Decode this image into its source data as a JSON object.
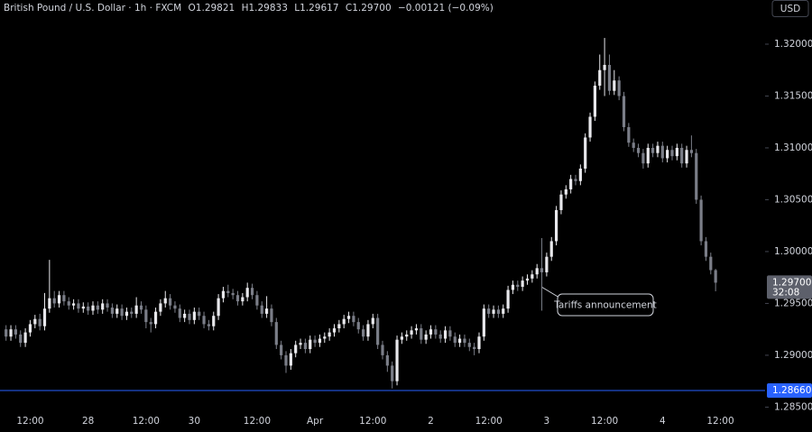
{
  "header": {
    "symbol": "British Pound / U.S. Dollar · 1h · FXCM",
    "ohlc": [
      {
        "key": "O",
        "value": "1.29821"
      },
      {
        "key": "H",
        "value": "1.29833"
      },
      {
        "key": "L",
        "value": "1.29617"
      },
      {
        "key": "C",
        "value": "1.29700"
      }
    ],
    "change": "−0.00121 (−0.09%)",
    "currency": "USD"
  },
  "chart_data": {
    "type": "candlestick",
    "categories": [
      null,
      null,
      null,
      null,
      null,
      "12:00",
      null,
      null,
      null,
      null,
      null,
      null,
      null,
      null,
      null,
      null,
      null,
      "28",
      null,
      null,
      null,
      null,
      null,
      null,
      null,
      null,
      null,
      null,
      null,
      "12:00",
      null,
      null,
      null,
      null,
      null,
      null,
      null,
      null,
      null,
      "30",
      null,
      null,
      null,
      null,
      null,
      null,
      null,
      null,
      null,
      null,
      null,
      null,
      "12:00",
      null,
      null,
      null,
      null,
      null,
      null,
      null,
      null,
      null,
      null,
      null,
      "Apr",
      null,
      null,
      null,
      null,
      null,
      null,
      null,
      null,
      null,
      null,
      null,
      "12:00",
      null,
      null,
      null,
      null,
      null,
      null,
      null,
      null,
      null,
      null,
      null,
      "2",
      null,
      null,
      null,
      null,
      null,
      null,
      null,
      null,
      null,
      null,
      null,
      "12:00",
      null,
      null,
      null,
      null,
      null,
      null,
      null,
      null,
      null,
      null,
      null,
      "3",
      null,
      null,
      null,
      null,
      null,
      null,
      null,
      null,
      null,
      null,
      null,
      "12:00",
      null,
      null,
      null,
      null,
      null,
      null,
      null,
      null,
      null,
      null,
      null,
      "4",
      null,
      null,
      null,
      null,
      null,
      null,
      null,
      null,
      null,
      null,
      null,
      "12:00"
    ],
    "open": [
      1.2925,
      1.2918,
      1.2925,
      1.292,
      1.2912,
      1.2922,
      1.293,
      1.2935,
      1.2928,
      1.2945,
      1.2955,
      1.295,
      1.2958,
      1.2952,
      1.2948,
      1.295,
      1.2945,
      1.2947,
      1.2943,
      1.2948,
      1.2944,
      1.295,
      1.2946,
      1.294,
      1.2945,
      1.2938,
      1.2942,
      1.294,
      1.2948,
      1.2944,
      1.2932,
      1.293,
      1.2942,
      1.295,
      1.2955,
      1.2948,
      1.2945,
      1.2936,
      1.294,
      1.2934,
      1.2942,
      1.2938,
      1.293,
      1.2928,
      1.2938,
      1.2955,
      1.2962,
      1.296,
      1.2958,
      1.2952,
      1.2956,
      1.2965,
      1.2958,
      1.2948,
      1.294,
      1.2945,
      1.2932,
      1.291,
      1.29,
      1.289,
      1.2902,
      1.291,
      1.2912,
      1.2906,
      1.2915,
      1.2912,
      1.2916,
      1.2918,
      1.2922,
      1.2926,
      1.293,
      1.2935,
      1.2938,
      1.2932,
      1.2925,
      1.2918,
      1.293,
      1.2936,
      1.291,
      1.29,
      1.289,
      1.2875,
      1.2915,
      1.2918,
      1.292,
      1.2924,
      1.2926,
      1.2915,
      1.292,
      1.2925,
      1.292,
      1.2916,
      1.2924,
      1.2918,
      1.2912,
      1.2916,
      1.2912,
      1.2908,
      1.2906,
      1.2918,
      1.2945,
      1.294,
      1.2944,
      1.294,
      1.2945,
      1.2963,
      1.2968,
      1.2966,
      1.2972,
      1.2974,
      1.2978,
      1.2984,
      1.298,
      1.2995,
      1.301,
      1.304,
      1.3055,
      1.306,
      1.307,
      1.3068,
      1.308,
      1.311,
      1.313,
      1.316,
      1.3175,
      1.318,
      1.3155,
      1.3165,
      1.315,
      1.312,
      1.3105,
      1.31,
      1.3095,
      1.3085,
      1.31,
      1.3095,
      1.3102,
      1.309,
      1.3098,
      1.3092,
      1.31,
      1.3085,
      1.3098,
      1.3095,
      1.305,
      1.301,
      1.2995,
      1.29821,
      null
    ],
    "high": [
      1.2929,
      1.2929,
      1.2929,
      1.2924,
      1.2926,
      1.2934,
      1.2939,
      1.294,
      1.296,
      1.2992,
      1.2962,
      1.2962,
      1.2962,
      1.2956,
      1.2954,
      1.2954,
      1.2951,
      1.2951,
      1.2952,
      1.2952,
      1.2954,
      1.2954,
      1.295,
      1.2949,
      1.2949,
      1.2946,
      1.2946,
      1.2956,
      1.2952,
      1.2948,
      1.2936,
      1.2946,
      1.2954,
      1.2962,
      1.2959,
      1.2952,
      1.2949,
      1.2944,
      1.2944,
      1.2946,
      1.2946,
      1.2942,
      1.2934,
      1.2942,
      1.2959,
      1.2966,
      1.2968,
      1.2964,
      1.2962,
      1.296,
      1.297,
      1.2969,
      1.2962,
      1.2952,
      1.2957,
      1.2949,
      1.2936,
      1.2914,
      1.2904,
      1.2906,
      1.2914,
      1.2916,
      1.2916,
      1.2919,
      1.2919,
      1.292,
      1.2922,
      1.2926,
      1.293,
      1.2934,
      1.2939,
      1.2942,
      1.2942,
      1.2936,
      1.2929,
      1.2934,
      1.294,
      1.294,
      1.2914,
      1.2904,
      1.2894,
      1.2919,
      1.2922,
      1.2924,
      1.2928,
      1.293,
      1.293,
      1.2924,
      1.2929,
      1.2929,
      1.2924,
      1.2928,
      1.2928,
      1.2922,
      1.292,
      1.292,
      1.2916,
      1.2912,
      1.2922,
      1.2949,
      1.2949,
      1.2948,
      1.2948,
      1.2949,
      1.2967,
      1.2972,
      1.2972,
      1.2976,
      1.2978,
      1.2982,
      1.2988,
      1.3013,
      1.2999,
      1.3014,
      1.3044,
      1.3059,
      1.3064,
      1.3074,
      1.3074,
      1.3084,
      1.3114,
      1.3134,
      1.3164,
      1.319,
      1.3206,
      1.319,
      1.3175,
      1.3169,
      1.3154,
      1.3124,
      1.3109,
      1.3104,
      1.3099,
      1.3104,
      1.3104,
      1.3106,
      1.3106,
      1.3102,
      1.3102,
      1.3104,
      1.3104,
      1.3102,
      1.3112,
      1.3099,
      1.3054,
      1.3014,
      1.2999,
      1.29833,
      null
    ],
    "low": [
      1.2914,
      1.2914,
      1.2916,
      1.2908,
      1.2908,
      1.2918,
      1.2926,
      1.2924,
      1.2924,
      1.2941,
      1.2946,
      1.2946,
      1.2948,
      1.2944,
      1.2944,
      1.2941,
      1.2941,
      1.2939,
      1.2939,
      1.294,
      1.294,
      1.2942,
      1.2936,
      1.2936,
      1.2934,
      1.2934,
      1.2936,
      1.2936,
      1.294,
      1.2926,
      1.2922,
      1.2926,
      1.2938,
      1.2946,
      1.2944,
      1.2941,
      1.2932,
      1.2932,
      1.293,
      1.293,
      1.2934,
      1.2926,
      1.2924,
      1.2924,
      1.2934,
      1.2951,
      1.2956,
      1.2954,
      1.2948,
      1.2948,
      1.2952,
      1.2954,
      1.2944,
      1.2936,
      1.2936,
      1.2928,
      1.2906,
      1.2896,
      1.2883,
      1.2886,
      1.2898,
      1.2906,
      1.2902,
      1.2902,
      1.2908,
      1.2908,
      1.2912,
      1.2914,
      1.2918,
      1.2922,
      1.2926,
      1.2931,
      1.2928,
      1.2921,
      1.2914,
      1.2914,
      1.2926,
      1.2906,
      1.2896,
      1.2884,
      1.2868,
      1.2871,
      1.2911,
      1.2914,
      1.2916,
      1.292,
      1.2911,
      1.2911,
      1.2916,
      1.2916,
      1.2912,
      1.2912,
      1.2914,
      1.2908,
      1.2908,
      1.2908,
      1.2904,
      1.29,
      1.2902,
      1.2914,
      1.2936,
      1.2936,
      1.2936,
      1.2936,
      1.2941,
      1.2959,
      1.2962,
      1.2962,
      1.2968,
      1.297,
      1.2974,
      1.2943,
      1.2976,
      1.2991,
      1.3006,
      1.3036,
      1.3051,
      1.3056,
      1.3064,
      1.3064,
      1.3076,
      1.3106,
      1.3126,
      1.3156,
      1.315,
      1.3151,
      1.3151,
      1.3146,
      1.3116,
      1.3101,
      1.3096,
      1.3091,
      1.308,
      1.3081,
      1.3091,
      1.3091,
      1.3086,
      1.3086,
      1.3088,
      1.3088,
      1.3081,
      1.3081,
      1.3091,
      1.3046,
      1.3006,
      1.2991,
      1.2978,
      1.29617,
      null
    ],
    "close": [
      1.2918,
      1.2925,
      1.292,
      1.2912,
      1.2922,
      1.293,
      1.2935,
      1.2928,
      1.2945,
      1.2955,
      1.295,
      1.2958,
      1.2952,
      1.2948,
      1.295,
      1.2945,
      1.2947,
      1.2943,
      1.2948,
      1.2944,
      1.295,
      1.2946,
      1.294,
      1.2945,
      1.2938,
      1.2942,
      1.294,
      1.2948,
      1.2944,
      1.2932,
      1.293,
      1.2942,
      1.295,
      1.2955,
      1.2948,
      1.2945,
      1.2936,
      1.294,
      1.2934,
      1.2942,
      1.2938,
      1.293,
      1.2928,
      1.2938,
      1.2955,
      1.2962,
      1.296,
      1.2958,
      1.2952,
      1.2956,
      1.2965,
      1.2958,
      1.2948,
      1.294,
      1.2945,
      1.2932,
      1.291,
      1.29,
      1.289,
      1.2902,
      1.291,
      1.2912,
      1.2906,
      1.2915,
      1.2912,
      1.2916,
      1.2918,
      1.2922,
      1.2926,
      1.293,
      1.2935,
      1.2938,
      1.2932,
      1.2925,
      1.2918,
      1.293,
      1.2936,
      1.291,
      1.29,
      1.289,
      1.2875,
      1.2915,
      1.2918,
      1.292,
      1.2924,
      1.2926,
      1.2915,
      1.292,
      1.2925,
      1.292,
      1.2916,
      1.2924,
      1.2918,
      1.2912,
      1.2916,
      1.2912,
      1.2908,
      1.2906,
      1.2918,
      1.2945,
      1.294,
      1.2944,
      1.294,
      1.2945,
      1.2963,
      1.2968,
      1.2966,
      1.2972,
      1.2974,
      1.2978,
      1.2984,
      1.298,
      1.2995,
      1.301,
      1.304,
      1.3055,
      1.306,
      1.307,
      1.3068,
      1.308,
      1.311,
      1.313,
      1.316,
      1.3175,
      1.318,
      1.3155,
      1.3165,
      1.315,
      1.312,
      1.3105,
      1.31,
      1.3095,
      1.3085,
      1.31,
      1.3095,
      1.3102,
      1.309,
      1.3098,
      1.3092,
      1.31,
      1.3085,
      1.3098,
      1.3095,
      1.305,
      1.301,
      1.2995,
      1.29821,
      1.297,
      null
    ],
    "up_color": "#e8e8ec",
    "down_color": "#7b7e88",
    "ylim": [
      1.2846,
      1.32426
    ],
    "yticks": [
      {
        "value": 1.285,
        "label": "1.28500"
      },
      {
        "value": 1.29,
        "label": "1.29000"
      },
      {
        "value": 1.295,
        "label": "1.29500"
      },
      {
        "value": 1.3,
        "label": "1.30000"
      },
      {
        "value": 1.305,
        "label": "1.30500"
      },
      {
        "value": 1.31,
        "label": "1.31000"
      },
      {
        "value": 1.315,
        "label": "1.31500"
      },
      {
        "value": 1.32,
        "label": "1.32000"
      }
    ],
    "grid": false,
    "last_price": {
      "value": 1.297,
      "label": "1.29700",
      "countdown": "32:08",
      "color": "#5d606b"
    },
    "price_line": {
      "value": 1.2866,
      "label": "1.28660",
      "color": "#2962ff"
    },
    "annotation": "Tariffs announcement"
  }
}
